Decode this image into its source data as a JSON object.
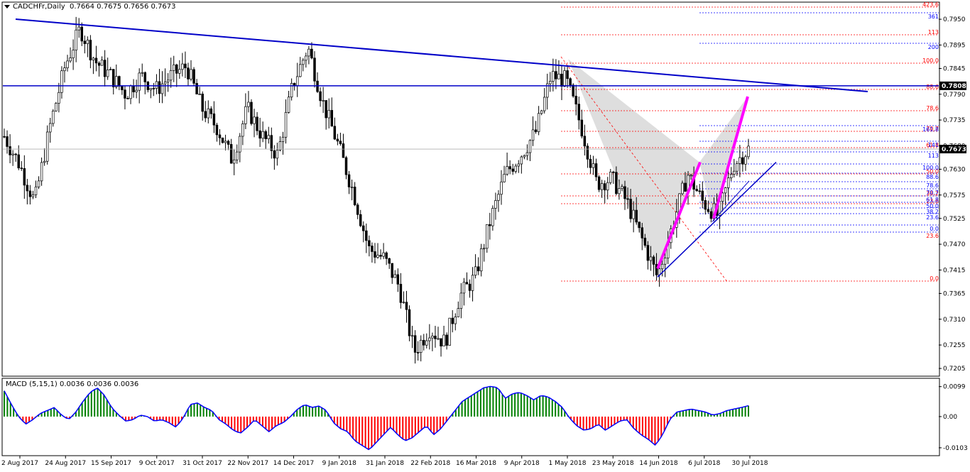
{
  "header": {
    "symbol_line": "CADCHFr,Daily",
    "ohlc": "0.7664 0.7675 0.7656 0.7673"
  },
  "macd_header": {
    "label": "MACD (5,15,1)",
    "values": "0.0036 0.0036 0.0036"
  },
  "colors": {
    "bull_candle": "#000000",
    "bear_candle": "#000000",
    "trendline": "#0000c8",
    "fib_red": "#ff0000",
    "fib_blue": "#0000ff",
    "pattern_fill": "#d8d8d8",
    "magenta": "#ff00ff",
    "macd_pos": "#008000",
    "macd_neg": "#ff0000",
    "macd_signal": "#0000ff",
    "price_tag_bg": "#000000"
  },
  "chart_data": [
    {
      "type": "candlestick",
      "title": "CADCHFr,Daily",
      "price_axis_ticks": [
        "0.7950",
        "0.7895",
        "0.7845",
        "0.7790",
        "0.7735",
        "0.7680",
        "0.7630",
        "0.7575",
        "0.7525",
        "0.7470",
        "0.7415",
        "0.7365",
        "0.7310",
        "0.7255",
        "0.7205"
      ],
      "date_axis_labels": [
        "2 Aug 2017",
        "24 Aug 2017",
        "15 Sep 2017",
        "9 Oct 2017",
        "31 Oct 2017",
        "22 Nov 2017",
        "14 Dec 2017",
        "9 Jan 2018",
        "31 Jan 2018",
        "22 Feb 2018",
        "16 Mar 2018",
        "9 Apr 2018",
        "1 May 2018",
        "23 May 2018",
        "14 Jun 2018",
        "6 Jul 2018",
        "30 Jul 2018"
      ],
      "ylim": [
        0.719,
        0.7985
      ],
      "current_price": "0.7673",
      "horizontal_level": "0.7808",
      "price_path": [
        [
          "2 Aug 2017",
          0.77
        ],
        [
          "9 Aug 2017",
          0.764
        ],
        [
          "16 Aug 2017",
          0.756
        ],
        [
          "24 Aug 2017",
          0.772
        ],
        [
          "31 Aug 2017",
          0.785
        ],
        [
          "8 Sep 2017",
          0.793
        ],
        [
          "15 Sep 2017",
          0.786
        ],
        [
          "22 Sep 2017",
          0.783
        ],
        [
          "2 Oct 2017",
          0.779
        ],
        [
          "9 Oct 2017",
          0.783
        ],
        [
          "16 Oct 2017",
          0.78
        ],
        [
          "24 Oct 2017",
          0.783
        ],
        [
          "31 Oct 2017",
          0.785
        ],
        [
          "8 Nov 2017",
          0.776
        ],
        [
          "15 Nov 2017",
          0.772
        ],
        [
          "22 Nov 2017",
          0.765
        ],
        [
          "29 Nov 2017",
          0.776
        ],
        [
          "7 Dec 2017",
          0.77
        ],
        [
          "14 Dec 2017",
          0.766
        ],
        [
          "21 Dec 2017",
          0.781
        ],
        [
          "2 Jan 2018",
          0.789
        ],
        [
          "9 Jan 2018",
          0.777
        ],
        [
          "16 Jan 2018",
          0.768
        ],
        [
          "24 Jan 2018",
          0.758
        ],
        [
          "31 Jan 2018",
          0.746
        ],
        [
          "7 Feb 2018",
          0.744
        ],
        [
          "14 Feb 2018",
          0.738
        ],
        [
          "22 Feb 2018",
          0.724
        ],
        [
          "28 Feb 2018",
          0.729
        ],
        [
          "7 Mar 2018",
          0.726
        ],
        [
          "16 Mar 2018",
          0.736
        ],
        [
          "23 Mar 2018",
          0.74
        ],
        [
          "2 Apr 2018",
          0.752
        ],
        [
          "9 Apr 2018",
          0.762
        ],
        [
          "16 Apr 2018",
          0.766
        ],
        [
          "24 Apr 2018",
          0.771
        ],
        [
          "1 May 2018",
          0.783
        ],
        [
          "8 May 2018",
          0.782
        ],
        [
          "16 May 2018",
          0.772
        ],
        [
          "23 May 2018",
          0.76
        ],
        [
          "30 May 2018",
          0.761
        ],
        [
          "7 Jun 2018",
          0.756
        ],
        [
          "14 Jun 2018",
          0.748
        ],
        [
          "20 Jun 2018",
          0.74
        ],
        [
          "27 Jun 2018",
          0.751
        ],
        [
          "6 Jul 2018",
          0.762
        ],
        [
          "13 Jul 2018",
          0.756
        ],
        [
          "20 Jul 2018",
          0.753
        ],
        [
          "30 Jul 2018",
          0.764
        ],
        [
          "3 Aug 2018",
          0.7673
        ]
      ],
      "fib_levels_right_red": [
        "423.6",
        "113",
        "100.0",
        "88.6",
        "78.6",
        "70.7",
        "61.8",
        "50.0",
        "38.2",
        "23.6",
        "0.0"
      ],
      "fib_levels_right_blue": [
        "361",
        "200",
        "161.8",
        "141",
        "113",
        "100.0",
        "88.6",
        "78.6",
        "70.7",
        "61.8",
        "50.0",
        "38.2",
        "23.6",
        "0.0",
        "23.6"
      ]
    },
    {
      "type": "bar",
      "title": "MACD (5,15,1)",
      "ticks": [
        "0.0099",
        "0.00",
        "-0.0103"
      ],
      "ylim": [
        -0.0115,
        0.011
      ],
      "series": [
        {
          "name": "MACD",
          "values": [
            0.0085,
            0.004,
            0.0,
            -0.0025,
            -0.001,
            0.001,
            0.002,
            0.003,
            0.0005,
            -0.001,
            0.0015,
            0.005,
            0.008,
            0.0095,
            0.007,
            0.003,
            0.0005,
            -0.0015,
            -0.001,
            0.0005,
            0.0,
            -0.0015,
            -0.001,
            -0.002,
            -0.0035,
            -0.0005,
            0.004,
            0.0045,
            0.003,
            0.002,
            -0.001,
            -0.0025,
            -0.0045,
            -0.0055,
            -0.0035,
            -0.001,
            -0.003,
            -0.005,
            -0.003,
            -0.002,
            0.0,
            0.0025,
            0.004,
            0.003,
            0.0035,
            0.002,
            -0.002,
            -0.004,
            -0.005,
            -0.008,
            -0.0095,
            -0.011,
            -0.0085,
            -0.006,
            -0.0035,
            -0.006,
            -0.008,
            -0.007,
            -0.005,
            -0.003,
            -0.006,
            -0.004,
            -0.001,
            0.002,
            0.005,
            0.0065,
            0.008,
            0.0095,
            0.01,
            0.0095,
            0.006,
            0.0075,
            0.008,
            0.007,
            0.0055,
            0.007,
            0.0065,
            0.005,
            0.003,
            -0.0005,
            -0.003,
            -0.0045,
            -0.004,
            -0.0025,
            -0.0045,
            -0.003,
            -0.0015,
            -0.001,
            -0.004,
            -0.006,
            -0.0075,
            -0.0095,
            -0.006,
            -0.001,
            0.0015,
            0.002,
            0.0025,
            0.002,
            0.0015,
            0.0005,
            0.001,
            0.002,
            0.0025,
            0.003,
            0.0036
          ]
        }
      ]
    }
  ]
}
